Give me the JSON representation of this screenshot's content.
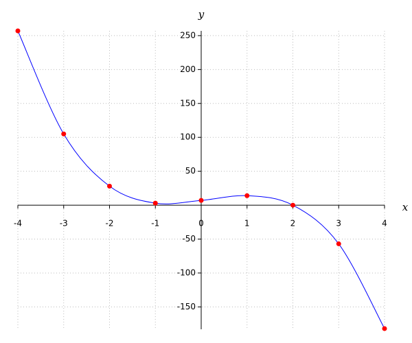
{
  "chart_data": {
    "type": "line",
    "x_label": "x",
    "y_label": "y",
    "x": [
      -4,
      -3,
      -2,
      -1,
      0,
      1,
      2,
      3,
      4
    ],
    "series": [
      {
        "values": [
          257,
          105,
          28,
          3,
          7,
          14,
          0,
          -57,
          -182
        ],
        "color": "#0000ff",
        "marker_color": "#ff0000"
      }
    ],
    "xlim": [
      -4,
      4
    ],
    "xticks": [
      -4,
      -3,
      -2,
      -1,
      0,
      1,
      2,
      3,
      4
    ],
    "ylim": [
      -183,
      257
    ],
    "yticks": [
      -150,
      -100,
      -50,
      50,
      100,
      150,
      200,
      250
    ],
    "grid": true
  }
}
